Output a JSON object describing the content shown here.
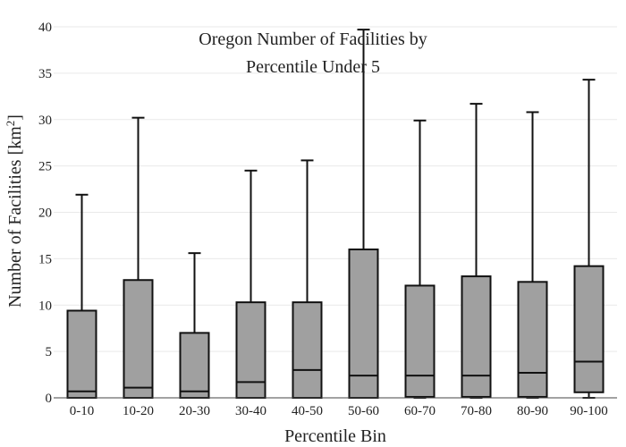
{
  "chart_data": {
    "type": "box",
    "title_lines": [
      "Oregon Number of Facilities by",
      "Percentile Under 5"
    ],
    "xlabel": "Percentile Bin",
    "ylabel_text": "Number of Facilities  [km",
    "ylabel_sup": "2",
    "ylabel_close": "]",
    "ylim": [
      0,
      40
    ],
    "yticks": [
      0,
      5,
      10,
      15,
      20,
      25,
      30,
      35,
      40
    ],
    "grid": true,
    "colors": {
      "box_fill": "#a0a0a0",
      "box_stroke": "#111111",
      "grid": "#e9e9e9"
    },
    "categories": [
      "0-10",
      "10-20",
      "20-30",
      "30-40",
      "40-50",
      "50-60",
      "60-70",
      "70-80",
      "80-90",
      "90-100"
    ],
    "boxes": [
      {
        "min": 0,
        "q1": 0,
        "median": 0.7,
        "q3": 9.4,
        "max": 21.9
      },
      {
        "min": 0,
        "q1": 0,
        "median": 1.1,
        "q3": 12.7,
        "max": 30.2
      },
      {
        "min": 0,
        "q1": 0,
        "median": 0.7,
        "q3": 7.0,
        "max": 15.6
      },
      {
        "min": 0,
        "q1": 0,
        "median": 1.7,
        "q3": 10.3,
        "max": 24.5
      },
      {
        "min": 0,
        "q1": 0,
        "median": 3.0,
        "q3": 10.3,
        "max": 25.6
      },
      {
        "min": 0,
        "q1": 0,
        "median": 2.4,
        "q3": 16.0,
        "max": 39.7
      },
      {
        "min": 0,
        "q1": 0.1,
        "median": 2.4,
        "q3": 12.1,
        "max": 29.9
      },
      {
        "min": 0,
        "q1": 0.1,
        "median": 2.4,
        "q3": 13.1,
        "max": 31.7
      },
      {
        "min": 0,
        "q1": 0.1,
        "median": 2.7,
        "q3": 12.5,
        "max": 30.8
      },
      {
        "min": 0,
        "q1": 0.6,
        "median": 3.9,
        "q3": 14.2,
        "max": 34.3
      }
    ]
  }
}
